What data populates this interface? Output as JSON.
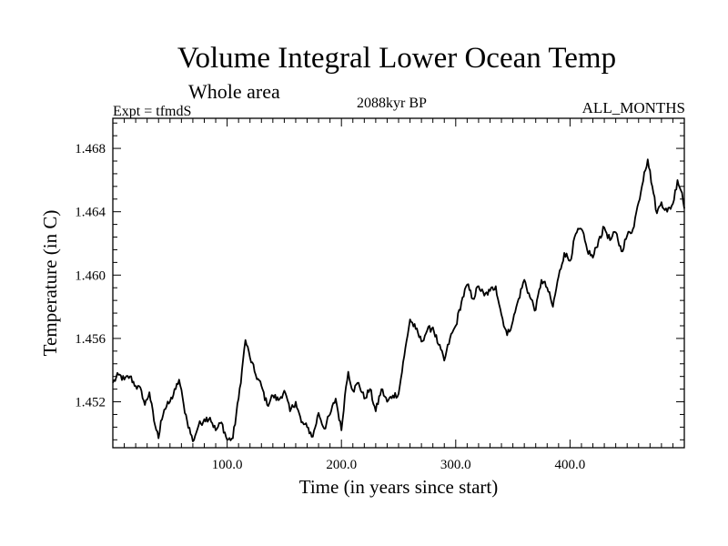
{
  "chart_data": {
    "type": "line",
    "title": "Volume Integral Lower Ocean Temp",
    "subtitle": "Whole area",
    "annotations": {
      "left": "Expt = tfmdS",
      "center": "2088kyr BP",
      "right": "ALL_MONTHS"
    },
    "xlabel": "Time (in years since start)",
    "ylabel": "Temperature (in C)",
    "xlim": [
      0,
      500
    ],
    "ylim": [
      1.4491,
      1.4699
    ],
    "x_ticks": [
      {
        "value": 100,
        "label": "100.0"
      },
      {
        "value": 200,
        "label": "200.0"
      },
      {
        "value": 300,
        "label": "300.0"
      },
      {
        "value": 400,
        "label": "400.0"
      }
    ],
    "y_ticks": [
      {
        "value": 1.452,
        "label": "1.452"
      },
      {
        "value": 1.456,
        "label": "1.456"
      },
      {
        "value": 1.46,
        "label": "1.460"
      },
      {
        "value": 1.464,
        "label": "1.464"
      },
      {
        "value": 1.468,
        "label": "1.468"
      }
    ],
    "series": [
      {
        "name": "Volume Integral Lower Ocean Temp",
        "x": [
          0,
          5,
          10,
          15,
          20,
          25,
          28,
          32,
          36,
          40,
          42,
          45,
          50,
          55,
          58,
          62,
          65,
          70,
          75,
          80,
          85,
          90,
          95,
          100,
          105,
          110,
          113,
          116,
          120,
          125,
          130,
          135,
          140,
          145,
          150,
          155,
          160,
          165,
          170,
          175,
          180,
          185,
          190,
          195,
          200,
          203,
          206,
          210,
          215,
          220,
          225,
          230,
          235,
          240,
          245,
          250,
          255,
          260,
          265,
          270,
          275,
          280,
          285,
          290,
          295,
          300,
          305,
          310,
          315,
          320,
          325,
          330,
          335,
          340,
          345,
          350,
          355,
          360,
          365,
          370,
          375,
          380,
          385,
          390,
          395,
          400,
          405,
          410,
          415,
          420,
          425,
          430,
          435,
          440,
          445,
          450,
          455,
          460,
          465,
          468,
          472,
          476,
          480,
          485,
          490,
          494,
          498,
          500
        ],
        "y": [
          1.4532,
          1.4537,
          1.4534,
          1.4536,
          1.453,
          1.4527,
          1.4518,
          1.4526,
          1.4508,
          1.4497,
          1.4508,
          1.4515,
          1.452,
          1.4528,
          1.4534,
          1.4518,
          1.4508,
          1.4495,
          1.4505,
          1.4509,
          1.451,
          1.4502,
          1.4507,
          1.4496,
          1.4497,
          1.4522,
          1.454,
          1.4559,
          1.4548,
          1.4537,
          1.453,
          1.4518,
          1.4524,
          1.4521,
          1.4527,
          1.4514,
          1.452,
          1.4507,
          1.4504,
          1.4498,
          1.4513,
          1.4503,
          1.4512,
          1.4522,
          1.4502,
          1.4524,
          1.4539,
          1.4527,
          1.4532,
          1.4522,
          1.4528,
          1.4514,
          1.4528,
          1.452,
          1.4524,
          1.4525,
          1.4549,
          1.4572,
          1.4566,
          1.4558,
          1.4565,
          1.4567,
          1.4556,
          1.4546,
          1.456,
          1.4568,
          1.4583,
          1.4594,
          1.4585,
          1.4593,
          1.4587,
          1.459,
          1.4593,
          1.4575,
          1.4562,
          1.4571,
          1.4585,
          1.4597,
          1.4586,
          1.4578,
          1.4597,
          1.4592,
          1.458,
          1.4599,
          1.4614,
          1.4609,
          1.4626,
          1.4629,
          1.4616,
          1.4611,
          1.4622,
          1.463,
          1.4622,
          1.4627,
          1.4615,
          1.4625,
          1.4629,
          1.4646,
          1.4665,
          1.4673,
          1.4656,
          1.4639,
          1.4646,
          1.464,
          1.4645,
          1.466,
          1.4652,
          1.4642
        ]
      }
    ]
  }
}
